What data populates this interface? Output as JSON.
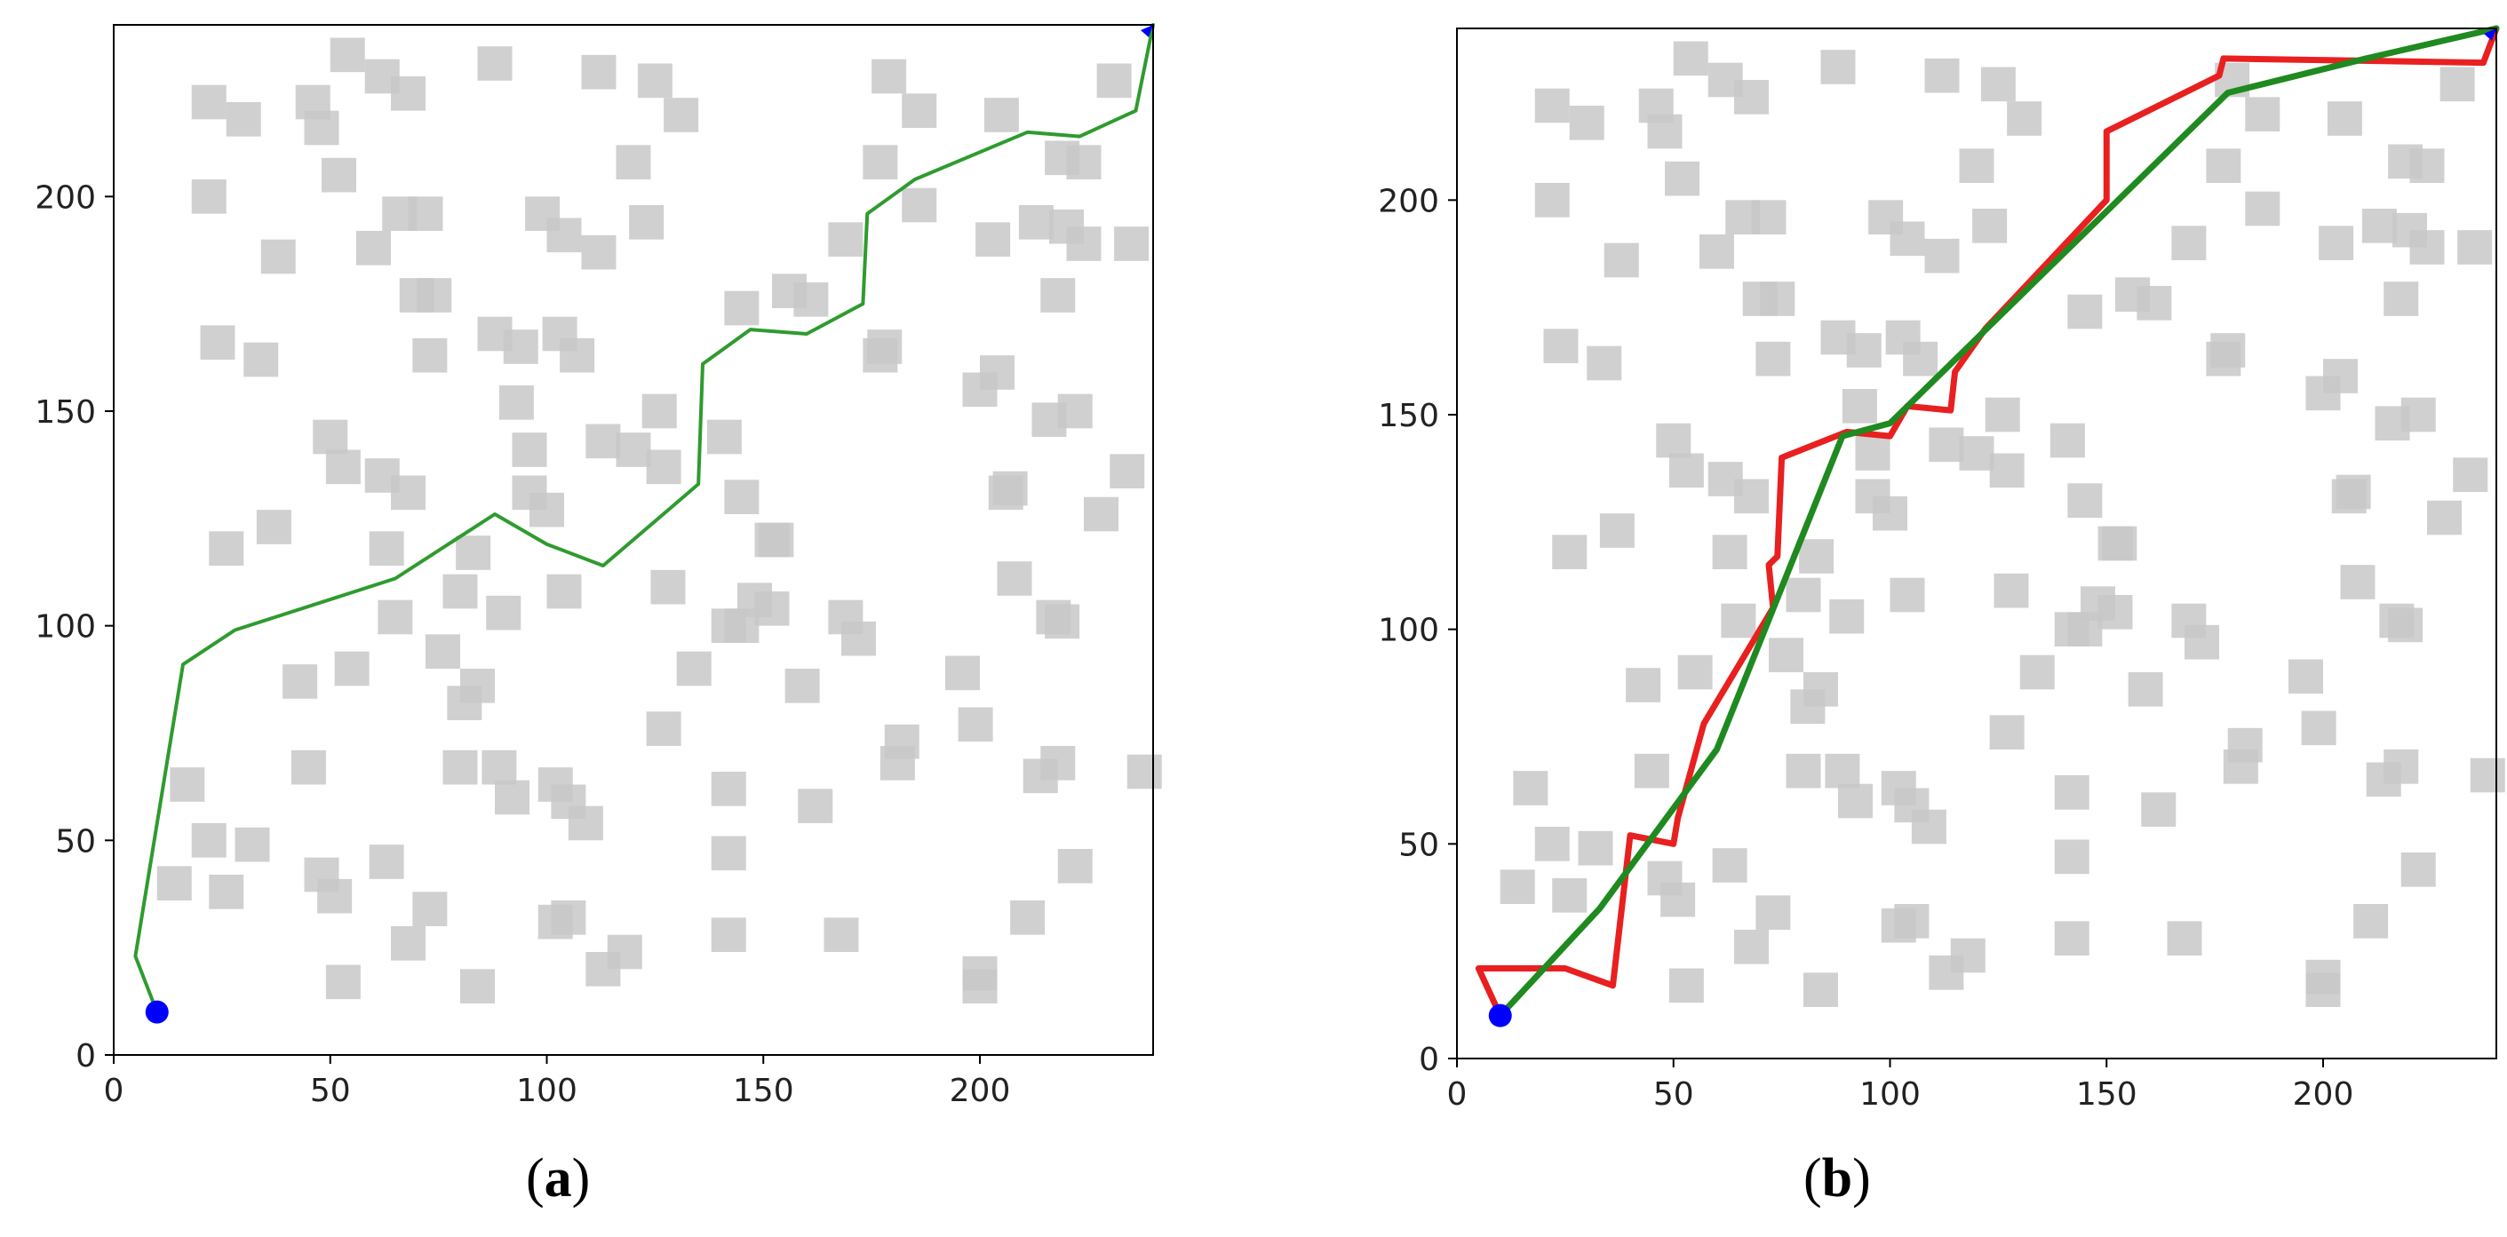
{
  "figure": {
    "panels": [
      {
        "id": "a",
        "label_open": "(",
        "label_letter": "a",
        "label_close": ")"
      },
      {
        "id": "b",
        "label_open": "(",
        "label_letter": "b",
        "label_close": ")"
      }
    ]
  },
  "chart_data": [
    {
      "type": "scatter",
      "panel": "a",
      "title": "",
      "xlabel": "",
      "ylabel": "",
      "xlim": [
        0,
        240
      ],
      "ylim": [
        0,
        240
      ],
      "xticks": [
        0,
        50,
        100,
        150,
        200
      ],
      "yticks": [
        0,
        50,
        100,
        150,
        200
      ],
      "grid": false,
      "colors": {
        "obstacle": "#c8c8c8",
        "start": "#0000ff",
        "path": "#2e9b2e"
      },
      "obstacles": [
        [
          22,
          222
        ],
        [
          30,
          218
        ],
        [
          46,
          222
        ],
        [
          48,
          216
        ],
        [
          54,
          233
        ],
        [
          62,
          228
        ],
        [
          68,
          224
        ],
        [
          52,
          205
        ],
        [
          22,
          200
        ],
        [
          60,
          188
        ],
        [
          66,
          196
        ],
        [
          72,
          196
        ],
        [
          38,
          186
        ],
        [
          24,
          166
        ],
        [
          34,
          162
        ],
        [
          70,
          177
        ],
        [
          74,
          177
        ],
        [
          73,
          163
        ],
        [
          50,
          144
        ],
        [
          53,
          137
        ],
        [
          62,
          135
        ],
        [
          68,
          131
        ],
        [
          63,
          118
        ],
        [
          26,
          118
        ],
        [
          37,
          123
        ],
        [
          88,
          231
        ],
        [
          99,
          196
        ],
        [
          104,
          191
        ],
        [
          112,
          187
        ],
        [
          112,
          229
        ],
        [
          125,
          227
        ],
        [
          131,
          219
        ],
        [
          120,
          208
        ],
        [
          123,
          194
        ],
        [
          88,
          168
        ],
        [
          94,
          165
        ],
        [
          103,
          168
        ],
        [
          107,
          163
        ],
        [
          93,
          152
        ],
        [
          96,
          141
        ],
        [
          96,
          131
        ],
        [
          100,
          127
        ],
        [
          113,
          143
        ],
        [
          120,
          141
        ],
        [
          127,
          137
        ],
        [
          126,
          150
        ],
        [
          141,
          144
        ],
        [
          145,
          130
        ],
        [
          152,
          120
        ],
        [
          145,
          174
        ],
        [
          156,
          178
        ],
        [
          161,
          176
        ],
        [
          169,
          190
        ],
        [
          177,
          163
        ],
        [
          178,
          165
        ],
        [
          177,
          208
        ],
        [
          179,
          228
        ],
        [
          186,
          220
        ],
        [
          186,
          198
        ],
        [
          205,
          219
        ],
        [
          213,
          194
        ],
        [
          219,
          209
        ],
        [
          224,
          208
        ],
        [
          220,
          193
        ],
        [
          224,
          189
        ],
        [
          235,
          189
        ],
        [
          203,
          190
        ],
        [
          200,
          155
        ],
        [
          204,
          159
        ],
        [
          206,
          131
        ],
        [
          207,
          132
        ],
        [
          216,
          148
        ],
        [
          222,
          150
        ],
        [
          218,
          177
        ],
        [
          231,
          227
        ],
        [
          234,
          136
        ],
        [
          228,
          126
        ],
        [
          208,
          111
        ],
        [
          217,
          102
        ],
        [
          219,
          101
        ],
        [
          104,
          108
        ],
        [
          83,
          117
        ],
        [
          80,
          108
        ],
        [
          90,
          103
        ],
        [
          65,
          102
        ],
        [
          43,
          87
        ],
        [
          55,
          90
        ],
        [
          76,
          94
        ],
        [
          81,
          82
        ],
        [
          84,
          86
        ],
        [
          45,
          67
        ],
        [
          80,
          67
        ],
        [
          89,
          67
        ],
        [
          92,
          60
        ],
        [
          102,
          63
        ],
        [
          105,
          59
        ],
        [
          109,
          54
        ],
        [
          48,
          42
        ],
        [
          51,
          37
        ],
        [
          63,
          45
        ],
        [
          73,
          34
        ],
        [
          68,
          26
        ],
        [
          53,
          17
        ],
        [
          84,
          16
        ],
        [
          17,
          63
        ],
        [
          14,
          40
        ],
        [
          22,
          50
        ],
        [
          26,
          38
        ],
        [
          32,
          49
        ],
        [
          102,
          31
        ],
        [
          105,
          32
        ],
        [
          113,
          20
        ],
        [
          118,
          24
        ],
        [
          127,
          76
        ],
        [
          128,
          109
        ],
        [
          134,
          90
        ],
        [
          142,
          100
        ],
        [
          145,
          100
        ],
        [
          148,
          106
        ],
        [
          152,
          104
        ],
        [
          153,
          120
        ],
        [
          142,
          62
        ],
        [
          142,
          47
        ],
        [
          142,
          28
        ],
        [
          159,
          86
        ],
        [
          162,
          58
        ],
        [
          168,
          28
        ],
        [
          169,
          102
        ],
        [
          172,
          97
        ],
        [
          182,
          73
        ],
        [
          181,
          68
        ],
        [
          196,
          89
        ],
        [
          199,
          77
        ],
        [
          200,
          19
        ],
        [
          200,
          16
        ],
        [
          211,
          32
        ],
        [
          214,
          65
        ],
        [
          218,
          68
        ],
        [
          222,
          44
        ],
        [
          238,
          66
        ]
      ],
      "start": {
        "x": 10,
        "y": 10
      },
      "goal": {
        "x": 240,
        "y": 240
      },
      "series": [
        {
          "x": [
            10,
            5,
            16,
            28,
            65,
            88,
            100,
            113,
            135,
            136,
            147,
            160,
            173,
            174,
            185,
            211,
            223,
            236,
            240
          ],
          "y": [
            10,
            23,
            91,
            99,
            111,
            126,
            119,
            114,
            133,
            161,
            169,
            168,
            175,
            196,
            204,
            215,
            214,
            220,
            240
          ]
        }
      ]
    },
    {
      "type": "scatter",
      "panel": "b",
      "title": "",
      "xlabel": "",
      "ylabel": "",
      "xlim": [
        0,
        240
      ],
      "ylim": [
        0,
        240
      ],
      "xticks": [
        0,
        50,
        100,
        150,
        200
      ],
      "yticks": [
        0,
        50,
        100,
        150,
        200
      ],
      "grid": false,
      "colors": {
        "obstacle": "#c8c8c8",
        "start": "#0000ff",
        "red_path": "#e8201f",
        "green_path": "#1f8a1f"
      },
      "obstacles": [
        [
          22,
          222
        ],
        [
          30,
          218
        ],
        [
          46,
          222
        ],
        [
          48,
          216
        ],
        [
          54,
          233
        ],
        [
          62,
          228
        ],
        [
          68,
          224
        ],
        [
          52,
          205
        ],
        [
          22,
          200
        ],
        [
          60,
          188
        ],
        [
          66,
          196
        ],
        [
          72,
          196
        ],
        [
          38,
          186
        ],
        [
          24,
          166
        ],
        [
          34,
          162
        ],
        [
          70,
          177
        ],
        [
          74,
          177
        ],
        [
          73,
          163
        ],
        [
          50,
          144
        ],
        [
          53,
          137
        ],
        [
          62,
          135
        ],
        [
          68,
          131
        ],
        [
          63,
          118
        ],
        [
          26,
          118
        ],
        [
          37,
          123
        ],
        [
          88,
          231
        ],
        [
          99,
          196
        ],
        [
          104,
          191
        ],
        [
          112,
          187
        ],
        [
          112,
          229
        ],
        [
          125,
          227
        ],
        [
          131,
          219
        ],
        [
          120,
          208
        ],
        [
          123,
          194
        ],
        [
          88,
          168
        ],
        [
          94,
          165
        ],
        [
          103,
          168
        ],
        [
          107,
          163
        ],
        [
          93,
          152
        ],
        [
          96,
          141
        ],
        [
          96,
          131
        ],
        [
          100,
          127
        ],
        [
          113,
          143
        ],
        [
          120,
          141
        ],
        [
          127,
          137
        ],
        [
          126,
          150
        ],
        [
          141,
          144
        ],
        [
          145,
          130
        ],
        [
          152,
          120
        ],
        [
          145,
          174
        ],
        [
          156,
          178
        ],
        [
          161,
          176
        ],
        [
          169,
          190
        ],
        [
          177,
          163
        ],
        [
          178,
          165
        ],
        [
          177,
          208
        ],
        [
          179,
          228
        ],
        [
          186,
          220
        ],
        [
          186,
          198
        ],
        [
          205,
          219
        ],
        [
          213,
          194
        ],
        [
          219,
          209
        ],
        [
          224,
          208
        ],
        [
          220,
          193
        ],
        [
          224,
          189
        ],
        [
          235,
          189
        ],
        [
          203,
          190
        ],
        [
          200,
          155
        ],
        [
          204,
          159
        ],
        [
          206,
          131
        ],
        [
          207,
          132
        ],
        [
          216,
          148
        ],
        [
          222,
          150
        ],
        [
          218,
          177
        ],
        [
          231,
          227
        ],
        [
          234,
          136
        ],
        [
          228,
          126
        ],
        [
          208,
          111
        ],
        [
          217,
          102
        ],
        [
          219,
          101
        ],
        [
          104,
          108
        ],
        [
          83,
          117
        ],
        [
          80,
          108
        ],
        [
          90,
          103
        ],
        [
          65,
          102
        ],
        [
          43,
          87
        ],
        [
          55,
          90
        ],
        [
          76,
          94
        ],
        [
          81,
          82
        ],
        [
          84,
          86
        ],
        [
          45,
          67
        ],
        [
          80,
          67
        ],
        [
          89,
          67
        ],
        [
          92,
          60
        ],
        [
          102,
          63
        ],
        [
          105,
          59
        ],
        [
          109,
          54
        ],
        [
          48,
          42
        ],
        [
          51,
          37
        ],
        [
          63,
          45
        ],
        [
          73,
          34
        ],
        [
          68,
          26
        ],
        [
          53,
          17
        ],
        [
          84,
          16
        ],
        [
          17,
          63
        ],
        [
          14,
          40
        ],
        [
          22,
          50
        ],
        [
          26,
          38
        ],
        [
          32,
          49
        ],
        [
          102,
          31
        ],
        [
          105,
          32
        ],
        [
          113,
          20
        ],
        [
          118,
          24
        ],
        [
          127,
          76
        ],
        [
          128,
          109
        ],
        [
          134,
          90
        ],
        [
          142,
          100
        ],
        [
          145,
          100
        ],
        [
          148,
          106
        ],
        [
          152,
          104
        ],
        [
          153,
          120
        ],
        [
          142,
          62
        ],
        [
          142,
          47
        ],
        [
          142,
          28
        ],
        [
          159,
          86
        ],
        [
          162,
          58
        ],
        [
          168,
          28
        ],
        [
          169,
          102
        ],
        [
          172,
          97
        ],
        [
          182,
          73
        ],
        [
          181,
          68
        ],
        [
          196,
          89
        ],
        [
          199,
          77
        ],
        [
          200,
          19
        ],
        [
          200,
          16
        ],
        [
          211,
          32
        ],
        [
          214,
          65
        ],
        [
          218,
          68
        ],
        [
          222,
          44
        ],
        [
          238,
          66
        ]
      ],
      "start": {
        "x": 10,
        "y": 10
      },
      "goal": {
        "x": 240,
        "y": 240
      },
      "series": [
        {
          "x": [
            10,
            5,
            25,
            36,
            40,
            50,
            51,
            57,
            73,
            72,
            74,
            75,
            90,
            100,
            104,
            114,
            115,
            122,
            150,
            150,
            176,
            177,
            237,
            240
          ],
          "y": [
            10,
            21,
            21,
            17,
            52,
            50,
            56,
            78,
            105,
            115,
            117,
            140,
            146,
            145,
            152,
            151,
            160,
            170,
            200,
            216,
            229,
            233,
            232,
            240
          ]
        },
        {
          "x": [
            10,
            33,
            60,
            89,
            100,
            178,
            210,
            240
          ],
          "y": [
            10,
            35,
            72,
            145,
            148,
            225,
            233,
            240
          ]
        }
      ]
    }
  ]
}
